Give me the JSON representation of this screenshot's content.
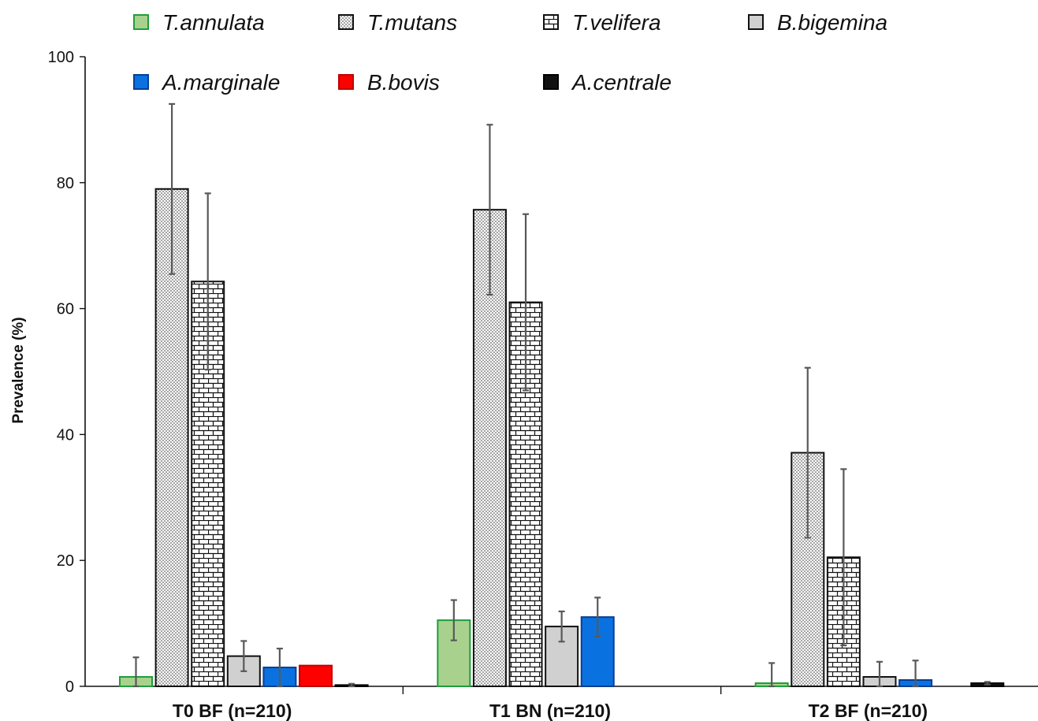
{
  "chart_data": {
    "type": "bar",
    "title": "",
    "xlabel": "",
    "ylabel": "Prevalence (%)",
    "ylim": [
      0,
      100
    ],
    "yticks": [
      0,
      20,
      40,
      60,
      80,
      100
    ],
    "categories": [
      "T0 BF (n=210)",
      "T1 BN (n=210)",
      "T2 BF (n=210)"
    ],
    "legend_position": "top",
    "grid": false,
    "series": [
      {
        "name": "T.annulata",
        "values": [
          1.5,
          10.5,
          0.5
        ],
        "errors": [
          3.1,
          3.2,
          3.2
        ],
        "fill": "#a9d18e",
        "stroke": "#1e9e3c",
        "pattern": "solid"
      },
      {
        "name": "T.mutans",
        "values": [
          79,
          75.7,
          37.1
        ],
        "errors": [
          13.5,
          13.5,
          13.5
        ],
        "fill": "#ffffff",
        "stroke": "#111111",
        "pattern": "dots"
      },
      {
        "name": "T.velifera",
        "values": [
          64.3,
          61.0,
          20.5
        ],
        "errors": [
          14.0,
          14.0,
          14.0
        ],
        "fill": "#ffffff",
        "stroke": "#111111",
        "pattern": "bricks"
      },
      {
        "name": "B.bigemina",
        "values": [
          4.8,
          9.5,
          1.5
        ],
        "errors": [
          2.4,
          2.4,
          2.4
        ],
        "fill": "#d0d0d0",
        "stroke": "#111111",
        "pattern": "solid"
      },
      {
        "name": "A.marginale",
        "values": [
          3.0,
          11.0,
          1.0
        ],
        "errors": [
          3.0,
          3.1,
          3.1
        ],
        "fill": "#0a72e0",
        "stroke": "#0b3d91",
        "pattern": "solid"
      },
      {
        "name": "B.bovis",
        "values": [
          3.3,
          0,
          0
        ],
        "errors": [
          0,
          0,
          0
        ],
        "fill": "#ff0000",
        "stroke": "#c00000",
        "pattern": "solid"
      },
      {
        "name": "A.centrale",
        "values": [
          0.2,
          0,
          0.5
        ],
        "errors": [
          0.2,
          0,
          0.2
        ],
        "fill": "#111111",
        "stroke": "#000000",
        "pattern": "solid"
      }
    ],
    "error_bar_color": "#595959"
  }
}
